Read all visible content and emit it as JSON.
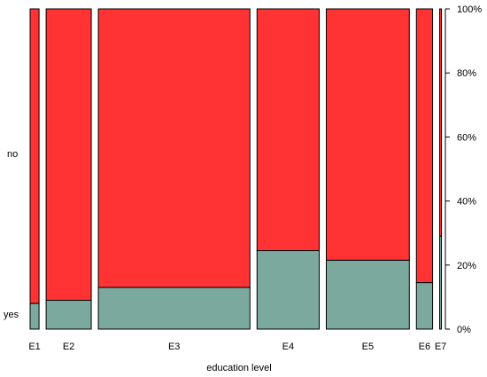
{
  "chart_data": {
    "type": "bar",
    "subtype": "spinogram",
    "xlabel": "education level",
    "ylabel": "",
    "categories": [
      "E1",
      "E2",
      "E3",
      "E4",
      "E5",
      "E6",
      "E7"
    ],
    "category_share": [
      0.021,
      0.106,
      0.356,
      0.146,
      0.195,
      0.038,
      0.003
    ],
    "series": [
      {
        "name": "yes",
        "values": [
          0.08,
          0.09,
          0.13,
          0.245,
          0.215,
          0.145,
          0.29
        ]
      },
      {
        "name": "no",
        "values": [
          0.92,
          0.91,
          0.87,
          0.755,
          0.785,
          0.855,
          0.71
        ]
      }
    ],
    "y_category_labels": [
      "no",
      "yes"
    ],
    "right_axis_ticks": [
      "0%",
      "20%",
      "40%",
      "60%",
      "80%",
      "100%"
    ],
    "ylim": [
      0,
      1
    ],
    "grid": false,
    "colors": {
      "yes": "#7ca99d",
      "no": "#ff3333"
    }
  }
}
